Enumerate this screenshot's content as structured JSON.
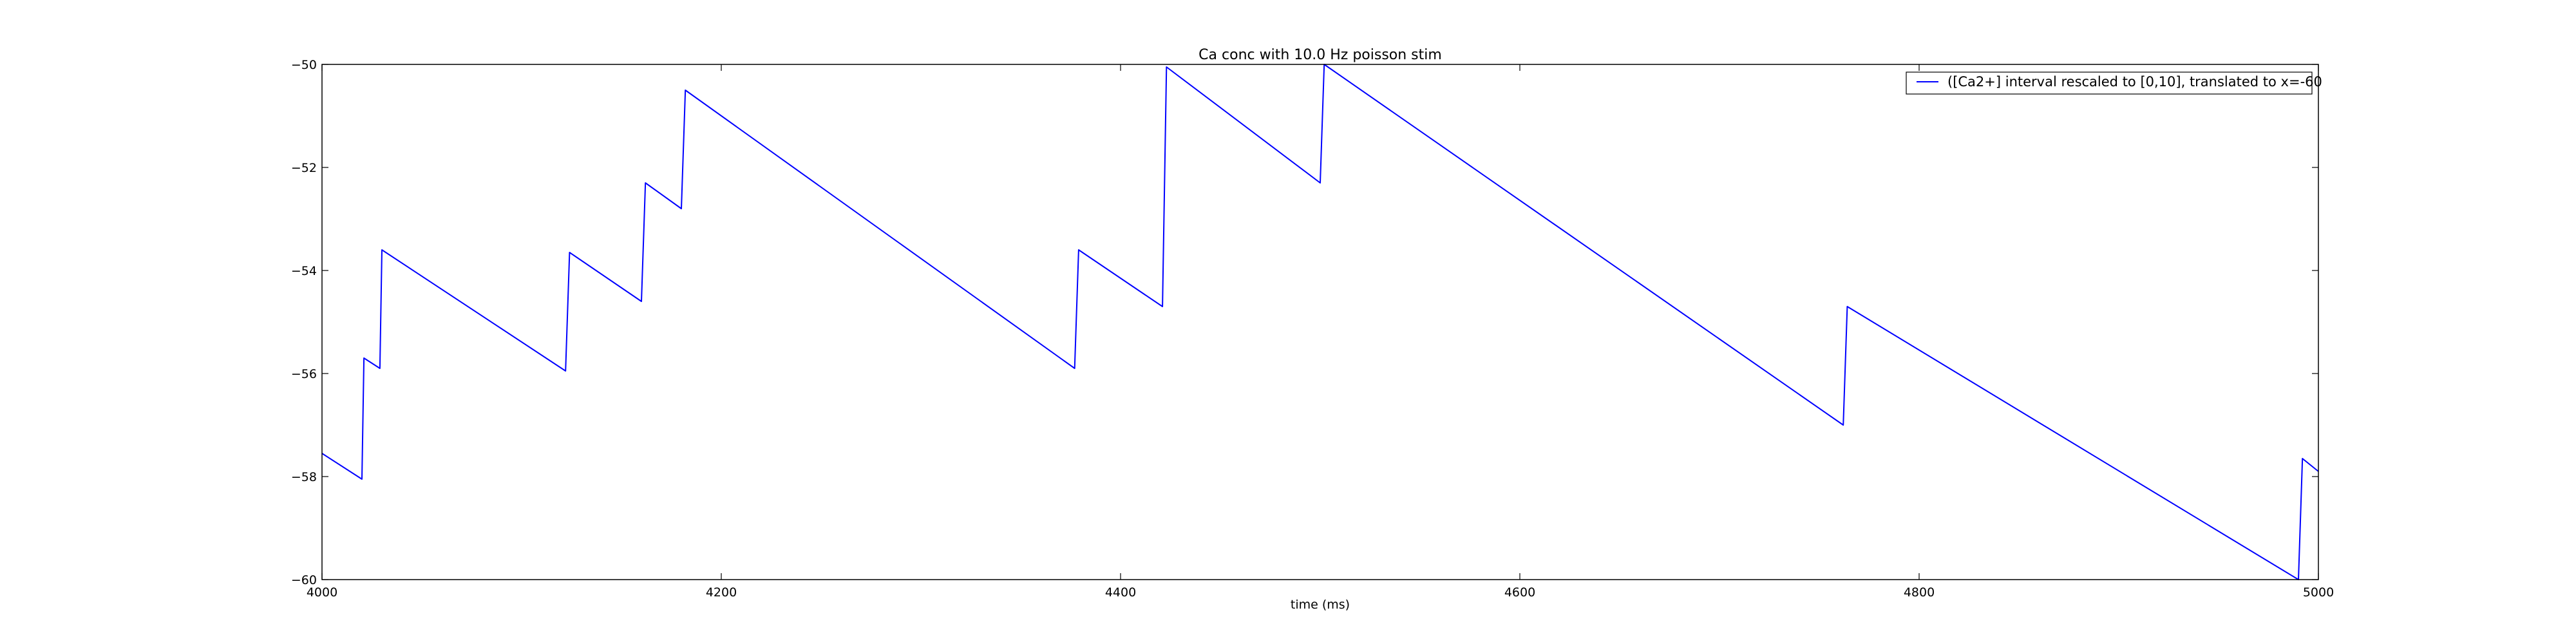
{
  "chart_data": {
    "type": "line",
    "title": "Ca conc with 10.0 Hz poisson stim",
    "xlabel": "time (ms)",
    "ylabel": "",
    "xlim": [
      4000,
      5000
    ],
    "ylim": [
      -60,
      -50
    ],
    "xticks": [
      4000,
      4200,
      4400,
      4600,
      4800,
      5000
    ],
    "yticks": [
      -60,
      -58,
      -56,
      -54,
      -52,
      -50
    ],
    "xtick_labels": [
      "4000",
      "4200",
      "4400",
      "4600",
      "4800",
      "5000"
    ],
    "ytick_labels": [
      "−60",
      "−58",
      "−56",
      "−54",
      "−52",
      "−50"
    ],
    "grid": false,
    "legend_position": "top-right",
    "series": [
      {
        "name": "([Ca2+] interval rescaled to [0,10], translated to x=-60",
        "color": "#0000ff",
        "x": [
          4000,
          4020,
          4021,
          4029,
          4030,
          4122,
          4124,
          4160,
          4162,
          4180,
          4182,
          4377,
          4379,
          4421,
          4423,
          4500,
          4502,
          4762,
          4764,
          4990,
          4992,
          5000
        ],
        "y": [
          -57.55,
          -58.05,
          -55.7,
          -55.9,
          -53.6,
          -55.95,
          -53.65,
          -54.6,
          -52.3,
          -52.8,
          -50.5,
          -55.9,
          -53.6,
          -54.7,
          -50.05,
          -52.3,
          -50.0,
          -57.0,
          -54.7,
          -60.0,
          -57.65,
          -57.9
        ]
      }
    ]
  },
  "colors": {
    "line": "#0000ff",
    "axes": "#000000",
    "background": "#ffffff"
  }
}
